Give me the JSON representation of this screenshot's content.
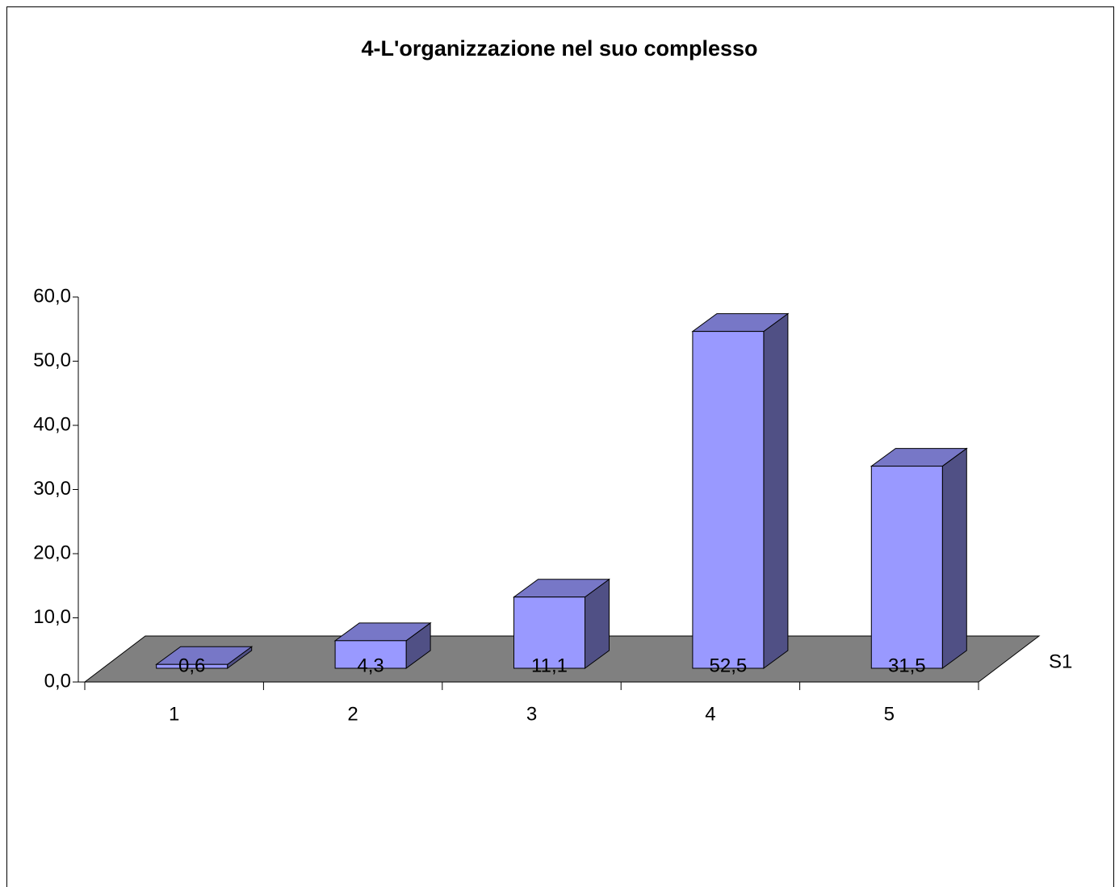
{
  "chart_data": {
    "type": "bar",
    "title": "4-L'organizzazione nel suo complesso",
    "categories": [
      "1",
      "2",
      "3",
      "4",
      "5"
    ],
    "series": [
      {
        "name": "S1",
        "color": "#9999ff",
        "values": [
          0.6,
          4.3,
          11.1,
          52.5,
          31.5
        ],
        "value_labels": [
          "0,6",
          "4,3",
          "11,1",
          "52,5",
          "31,5"
        ]
      }
    ],
    "ylim": [
      0,
      60
    ],
    "yticks": [
      {
        "value": 0,
        "label": "0,0"
      },
      {
        "value": 10,
        "label": "10,0"
      },
      {
        "value": 20,
        "label": "20,0"
      },
      {
        "value": 30,
        "label": "30,0"
      },
      {
        "value": 40,
        "label": "40,0"
      },
      {
        "value": 50,
        "label": "50,0"
      },
      {
        "value": 60,
        "label": "60,0"
      }
    ],
    "floor_color": "#808080"
  }
}
